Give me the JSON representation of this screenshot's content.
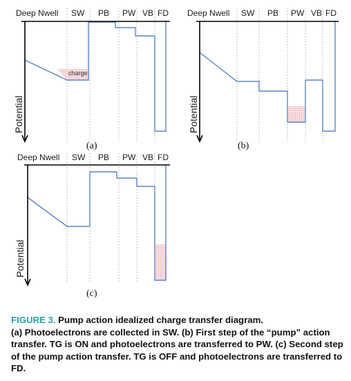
{
  "panels": [
    {
      "caption": "(a)",
      "regions": [
        "Deep Nwell",
        "SW",
        "PB",
        "PW",
        "VB",
        "FD"
      ],
      "y_axis_label": "Potential",
      "charge_label": "charge"
    },
    {
      "caption": "(b)",
      "regions": [
        "Deep Nwell",
        "SW",
        "PB",
        "PW",
        "VB",
        "FD"
      ],
      "y_axis_label": "Potential"
    },
    {
      "caption": "(c)",
      "regions": [
        "Deep Nwell",
        "SW",
        "PB",
        "PW",
        "VB",
        "FD"
      ],
      "y_axis_label": "Potential"
    }
  ],
  "figure_caption": {
    "figure_label": "FIGURE 3.",
    "title": "Pump action idealized charge transfer diagram.",
    "body": "(a) Photoelectrons are collected in SW. (b) First step of the “pump” action transfer. TG is ON and photoelectrons are transferred to PW. (c) Second step of the pump action transfer. TG is OFF and photoelectrons are transferred to FD."
  },
  "colors": {
    "potential_line": "#5b86c4",
    "charge_fill": "#f6c9cd",
    "caption_label": "#2aa0a5"
  }
}
